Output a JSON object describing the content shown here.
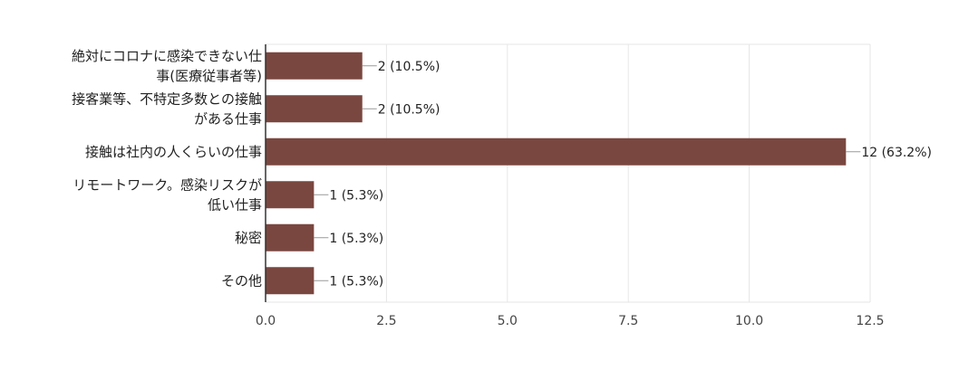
{
  "chart_data": {
    "type": "bar",
    "orientation": "horizontal",
    "categories": [
      [
        "絶対にコロナに感染できない仕",
        "事(医療従事者等)"
      ],
      [
        "接客業等、不特定多数との接触",
        "がある仕事"
      ],
      [
        "接触は社内の人くらいの仕事"
      ],
      [
        "リモートワーク。感染リスクが",
        "低い仕事"
      ],
      [
        "秘密"
      ],
      [
        "その他"
      ]
    ],
    "values": [
      2,
      2,
      12,
      1,
      1,
      1
    ],
    "data_labels": [
      "2 (10.5%)",
      "2 (10.5%)",
      "12 (63.2%)",
      "1 (5.3%)",
      "1 (5.3%)",
      "1 (5.3%)"
    ],
    "xlim": [
      0,
      12.5
    ],
    "xticks": [
      "0.0",
      "2.5",
      "5.0",
      "7.5",
      "10.0",
      "12.5"
    ],
    "xtick_values": [
      0,
      2.5,
      5,
      7.5,
      10,
      12.5
    ],
    "grid": true,
    "bar_color": "#7a4740",
    "gridline_color": "#e6e6e6",
    "axis_color": "#333333"
  }
}
